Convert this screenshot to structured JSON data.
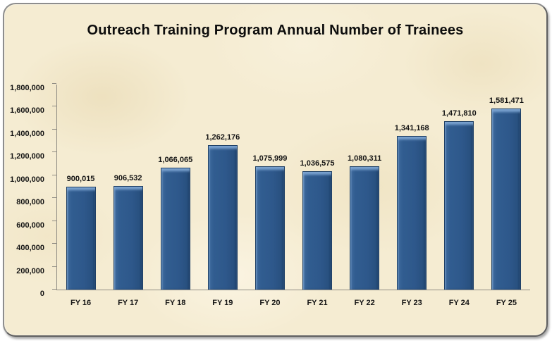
{
  "chart": {
    "title": "Outreach Training Program Annual Number of Trainees",
    "colors": {
      "card_background": "#f5ecd2",
      "card_border": "#8d8d8d",
      "bar_fill": "#2e588b",
      "bar_edge": "#1f4066",
      "bar_bevel_highlight": "#6f9cc9",
      "axis_line": "#8f8c83",
      "text": "#141414",
      "outer_background": "#ffffff"
    }
  },
  "chart_data": {
    "type": "bar",
    "title": "Outreach Training Program Annual Number of Trainees",
    "categories": [
      "FY 16",
      "FY 17",
      "FY 18",
      "FY 19",
      "FY 20",
      "FY 21",
      "FY 22",
      "FY 23",
      "FY 24",
      "FY 25"
    ],
    "values": [
      900015,
      906532,
      1066065,
      1262176,
      1075999,
      1036575,
      1080311,
      1341168,
      1471810,
      1581471
    ],
    "value_labels": [
      "900,015",
      "906,532",
      "1,066,065",
      "1,262,176",
      "1,075,999",
      "1,036,575",
      "1,080,311",
      "1,341,168",
      "1,471,810",
      "1,581,471"
    ],
    "xlabel": "",
    "ylabel": "",
    "ylim": [
      0,
      1800000
    ],
    "ytick_step": 200000,
    "ytick_values": [
      0,
      200000,
      400000,
      600000,
      800000,
      1000000,
      1200000,
      1400000,
      1600000,
      1800000
    ],
    "ytick_labels": [
      "0",
      "200,000",
      "400,000",
      "600,000",
      "800,000",
      "1,000,000",
      "1,200,000",
      "1,400,000",
      "1,600,000",
      "1,800,000"
    ],
    "grid": false,
    "legend": false,
    "data_labels": true
  }
}
